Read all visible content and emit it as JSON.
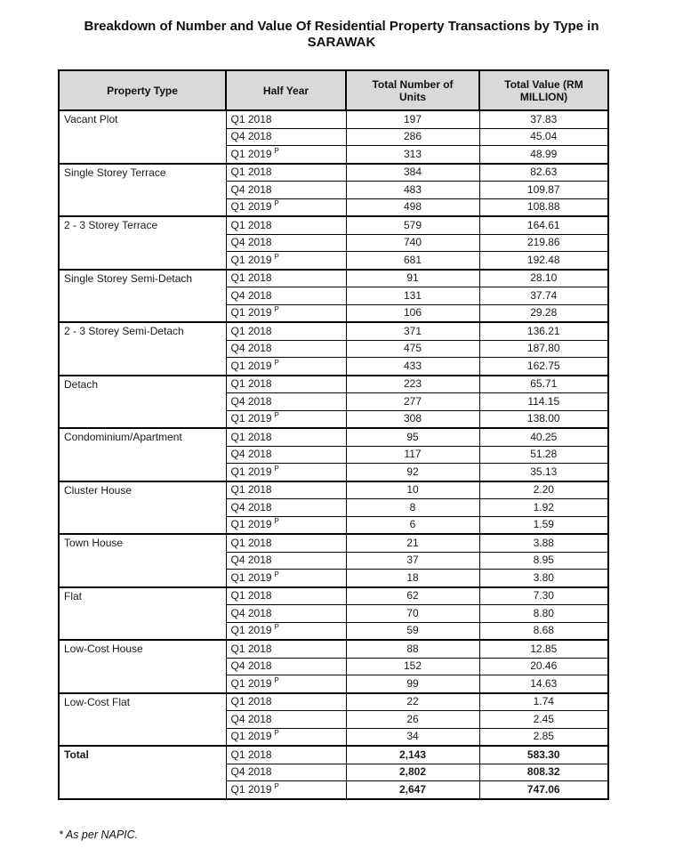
{
  "page": {
    "title_line1": "Breakdown of Number and Value Of Residential Property Transactions by Type in",
    "title_line2": "SARAWAK",
    "footnote": "* As per NAPIC."
  },
  "colors": {
    "header_bg": "#d9d9d9",
    "border": "#000000",
    "text": "#1a1a1a"
  },
  "table": {
    "headers": [
      "Property Type",
      "Half Year",
      "Total Number of Units",
      "Total Value (RM MILLION)"
    ],
    "prelim_mark": "P",
    "groups": [
      {
        "property_type": "Vacant Plot",
        "rows": [
          {
            "half_year": "Q1 2018",
            "prelim": false,
            "units": "197",
            "value": "37.83"
          },
          {
            "half_year": "Q4 2018",
            "prelim": false,
            "units": "286",
            "value": "45.04"
          },
          {
            "half_year": "Q1 2019",
            "prelim": true,
            "units": "313",
            "value": "48.99"
          }
        ]
      },
      {
        "property_type": "Single Storey Terrace",
        "rows": [
          {
            "half_year": "Q1 2018",
            "prelim": false,
            "units": "384",
            "value": "82.63"
          },
          {
            "half_year": "Q4 2018",
            "prelim": false,
            "units": "483",
            "value": "109.87"
          },
          {
            "half_year": "Q1 2019",
            "prelim": true,
            "units": "498",
            "value": "108.88"
          }
        ]
      },
      {
        "property_type": "2 - 3 Storey Terrace",
        "rows": [
          {
            "half_year": "Q1 2018",
            "prelim": false,
            "units": "579",
            "value": "164.61"
          },
          {
            "half_year": "Q4 2018",
            "prelim": false,
            "units": "740",
            "value": "219.86"
          },
          {
            "half_year": "Q1 2019",
            "prelim": true,
            "units": "681",
            "value": "192.48"
          }
        ]
      },
      {
        "property_type": "Single Storey Semi-Detach",
        "rows": [
          {
            "half_year": "Q1 2018",
            "prelim": false,
            "units": "91",
            "value": "28.10"
          },
          {
            "half_year": "Q4 2018",
            "prelim": false,
            "units": "131",
            "value": "37.74"
          },
          {
            "half_year": "Q1 2019",
            "prelim": true,
            "units": "106",
            "value": "29.28"
          }
        ]
      },
      {
        "property_type": "2 - 3 Storey Semi-Detach",
        "rows": [
          {
            "half_year": "Q1 2018",
            "prelim": false,
            "units": "371",
            "value": "136.21"
          },
          {
            "half_year": "Q4 2018",
            "prelim": false,
            "units": "475",
            "value": "187.80"
          },
          {
            "half_year": "Q1 2019",
            "prelim": true,
            "units": "433",
            "value": "162.75"
          }
        ]
      },
      {
        "property_type": "Detach",
        "rows": [
          {
            "half_year": "Q1 2018",
            "prelim": false,
            "units": "223",
            "value": "65.71"
          },
          {
            "half_year": "Q4 2018",
            "prelim": false,
            "units": "277",
            "value": "114.15"
          },
          {
            "half_year": "Q1 2019",
            "prelim": true,
            "units": "308",
            "value": "138.00"
          }
        ]
      },
      {
        "property_type": "Condominium/Apartment",
        "rows": [
          {
            "half_year": "Q1 2018",
            "prelim": false,
            "units": "95",
            "value": "40.25"
          },
          {
            "half_year": "Q4 2018",
            "prelim": false,
            "units": "117",
            "value": "51.28"
          },
          {
            "half_year": "Q1 2019",
            "prelim": true,
            "units": "92",
            "value": "35.13"
          }
        ]
      },
      {
        "property_type": "Cluster House",
        "rows": [
          {
            "half_year": "Q1 2018",
            "prelim": false,
            "units": "10",
            "value": "2.20"
          },
          {
            "half_year": "Q4 2018",
            "prelim": false,
            "units": "8",
            "value": "1.92"
          },
          {
            "half_year": "Q1 2019",
            "prelim": true,
            "units": "6",
            "value": "1.59"
          }
        ]
      },
      {
        "property_type": "Town House",
        "rows": [
          {
            "half_year": "Q1 2018",
            "prelim": false,
            "units": "21",
            "value": "3.88"
          },
          {
            "half_year": "Q4 2018",
            "prelim": false,
            "units": "37",
            "value": "8.95"
          },
          {
            "half_year": "Q1 2019",
            "prelim": true,
            "units": "18",
            "value": "3.80"
          }
        ]
      },
      {
        "property_type": "Flat",
        "rows": [
          {
            "half_year": "Q1 2018",
            "prelim": false,
            "units": "62",
            "value": "7.30"
          },
          {
            "half_year": "Q4 2018",
            "prelim": false,
            "units": "70",
            "value": "8.80"
          },
          {
            "half_year": "Q1 2019",
            "prelim": true,
            "units": "59",
            "value": "8.68"
          }
        ]
      },
      {
        "property_type": "Low-Cost House",
        "rows": [
          {
            "half_year": "Q1 2018",
            "prelim": false,
            "units": "88",
            "value": "12.85"
          },
          {
            "half_year": "Q4 2018",
            "prelim": false,
            "units": "152",
            "value": "20.46"
          },
          {
            "half_year": "Q1 2019",
            "prelim": true,
            "units": "99",
            "value": "14.63"
          }
        ]
      },
      {
        "property_type": "Low-Cost Flat",
        "rows": [
          {
            "half_year": "Q1 2018",
            "prelim": false,
            "units": "22",
            "value": "1.74"
          },
          {
            "half_year": "Q4 2018",
            "prelim": false,
            "units": "26",
            "value": "2.45"
          },
          {
            "half_year": "Q1 2019",
            "prelim": true,
            "units": "34",
            "value": "2.85"
          }
        ]
      },
      {
        "property_type": "Total",
        "bold": true,
        "rows": [
          {
            "half_year": "Q1 2018",
            "prelim": false,
            "units": "2,143",
            "value": "583.30"
          },
          {
            "half_year": "Q4 2018",
            "prelim": false,
            "units": "2,802",
            "value": "808.32"
          },
          {
            "half_year": "Q1 2019",
            "prelim": true,
            "units": "2,647",
            "value": "747.06"
          }
        ]
      }
    ]
  }
}
